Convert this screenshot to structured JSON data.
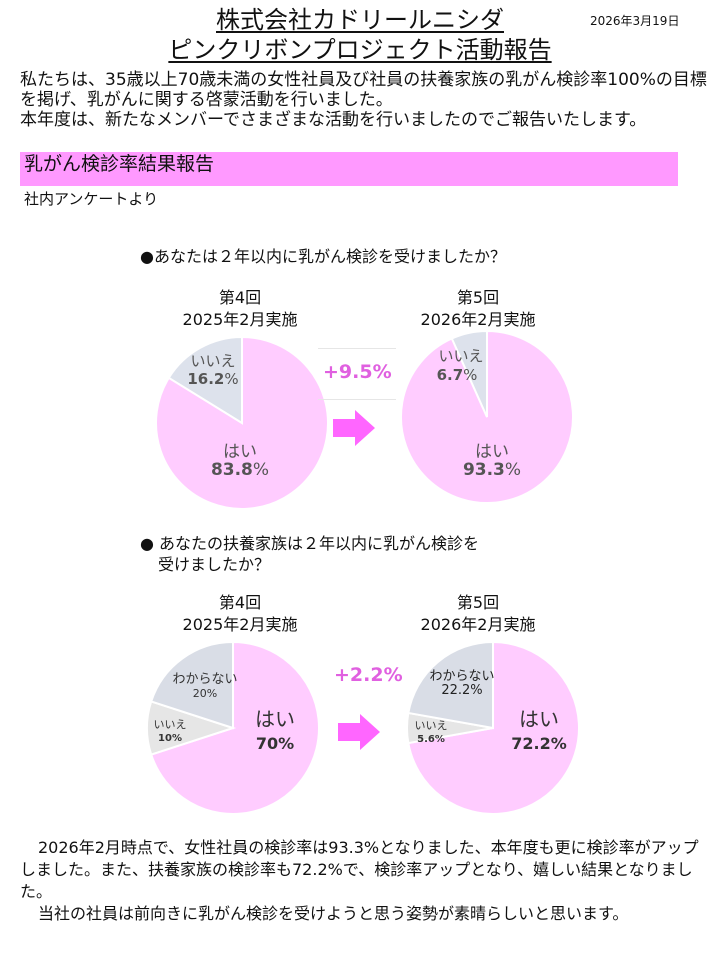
{
  "header": {
    "title_line1": "株式会社カドリールニシダ",
    "title_line2": "ピンクリボンプロジェクト活動報告",
    "date": "2026年3月19日"
  },
  "intro": {
    "para1": "私たちは、35歳以上70歳未満の女性社員及び社員の扶養家族の乳がん検診率100%の目標を掲げ、乳がんに関する啓蒙活動を行いました。",
    "para2": "本年度は、新たなメンバーでさまざまな活動を行いましたのでご報告いたします。"
  },
  "section": {
    "heading": "乳がん検診率結果報告",
    "source": "社内アンケートより"
  },
  "question1": {
    "text": "●あなたは２年以内に乳がん検診を受けましたか？",
    "change": "+9.5%",
    "left": {
      "round": "第4回",
      "date": "2025年2月実施",
      "yes_label": "はい",
      "yes_value": "83.8",
      "no_label": "いいえ",
      "no_value": "16.2"
    },
    "right": {
      "round": "第5回",
      "date": "2026年2月実施",
      "yes_label": "はい",
      "yes_value": "93.3",
      "no_label": "いいえ",
      "no_value": "6.7"
    }
  },
  "question2": {
    "line1": "●  あなたの扶養家族は２年以内に乳がん検診を",
    "line2": "受けましたか？",
    "change": "+2.2%",
    "left": {
      "round": "第4回",
      "date": "2025年2月実施",
      "yes_label": "はい",
      "yes_value": "70%",
      "no_label": "いいえ",
      "no_value": "10%",
      "unknown_label": "わからない",
      "unknown_value": "20%"
    },
    "right": {
      "round": "第5回",
      "date": "2026年2月実施",
      "yes_label": "はい",
      "yes_value": "72.2%",
      "no_label": "いいえ",
      "no_value": "5.6%",
      "unknown_label": "わからない",
      "unknown_value": "22.2%"
    }
  },
  "percent_sign": "%",
  "colors": {
    "yes": "#ffccff",
    "no": "#dde2ec",
    "no_alt": "#e6e6e6",
    "unknown": "#d9dde6",
    "accent": "#ff66ff",
    "band": "#ff99ff"
  },
  "chart_data": [
    {
      "type": "pie",
      "categories": [
        "はい",
        "いいえ"
      ],
      "values": [
        83.8,
        16.2
      ]
    },
    {
      "type": "pie",
      "categories": [
        "はい",
        "いいえ"
      ],
      "values": [
        93.3,
        6.7
      ]
    },
    {
      "type": "pie",
      "categories": [
        "はい",
        "いいえ",
        "わからない"
      ],
      "values": [
        70,
        10,
        20
      ]
    },
    {
      "type": "pie",
      "categories": [
        "はい",
        "いいえ",
        "わからない"
      ],
      "values": [
        72.2,
        5.6,
        22.2
      ]
    }
  ],
  "outro": {
    "para1": "2026年2月時点で、女性社員の検診率は93.3%となりました、本年度も更に検診率がアップしました。また、扶養家族の検診率も72.2%で、検診率アップとなり、嬉しい結果となりました。",
    "para2": "当社の社員は前向きに乳がん検診を受けようと思う姿勢が素晴らしいと思います。"
  }
}
